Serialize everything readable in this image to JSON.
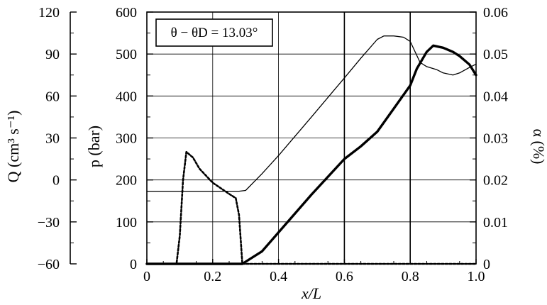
{
  "chart_data": {
    "type": "line",
    "annotation": "θ − θD = 13.03°",
    "x_axis": {
      "label": "x/L",
      "range": [
        0,
        1.0
      ],
      "ticks": [
        "0",
        "0.2",
        "0.4",
        "0.6",
        "0.8",
        "1.0"
      ]
    },
    "y_axes": [
      {
        "id": "Q",
        "label": "Q (cm³ s⁻¹)",
        "side": "far-left",
        "range": [
          -60,
          120
        ],
        "ticks": [
          "120",
          "90",
          "60",
          "30",
          "0",
          "−30",
          "−60"
        ]
      },
      {
        "id": "p",
        "label": "p (bar)",
        "side": "left",
        "range": [
          0,
          600
        ],
        "ticks": [
          "600",
          "500",
          "400",
          "300",
          "200",
          "100",
          "0"
        ]
      },
      {
        "id": "alpha",
        "label": "α (%)",
        "side": "right",
        "range": [
          0,
          0.06
        ],
        "ticks": [
          "0.06",
          "0.05",
          "0.04",
          "0.03",
          "0.02",
          "0.01",
          "0"
        ]
      }
    ],
    "grid": "major gridlines on x and p axes",
    "series": [
      {
        "axis": "p",
        "style": "thin solid",
        "x": [
          0,
          0.1,
          0.2,
          0.28,
          0.3,
          0.35,
          0.4,
          0.5,
          0.6,
          0.65,
          0.7,
          0.72,
          0.75,
          0.78,
          0.8,
          0.83,
          0.85,
          0.88,
          0.9,
          0.93,
          0.95,
          0.98,
          1.0
        ],
        "values": [
          173,
          173,
          173,
          173,
          175,
          215,
          258,
          350,
          443,
          490,
          535,
          543,
          543,
          540,
          530,
          480,
          470,
          463,
          455,
          450,
          455,
          468,
          476
        ]
      },
      {
        "axis": "alpha",
        "style": "thick solid",
        "x": [
          0,
          0.29,
          0.3,
          0.35,
          0.4,
          0.5,
          0.6,
          0.65,
          0.7,
          0.75,
          0.8,
          0.82,
          0.85,
          0.87,
          0.9,
          0.93,
          0.95,
          0.98,
          1.0
        ],
        "values": [
          0,
          0,
          0.0005,
          0.003,
          0.0075,
          0.0165,
          0.025,
          0.028,
          0.0315,
          0.037,
          0.0425,
          0.0465,
          0.0505,
          0.052,
          0.0515,
          0.0505,
          0.0495,
          0.0475,
          0.045
        ]
      },
      {
        "axis": "Q",
        "style": "dashed",
        "x": [
          0,
          0.09,
          0.1,
          0.11,
          0.12,
          0.14,
          0.16,
          0.2,
          0.25,
          0.27,
          0.28,
          0.29,
          0.3,
          0.4,
          0.6,
          0.8,
          1.0
        ],
        "values": [
          -60,
          -60,
          -40,
          0,
          20,
          16,
          8,
          -2,
          -10,
          -13,
          -25,
          -60,
          -60,
          -60,
          -60,
          -60,
          -60
        ]
      }
    ]
  }
}
